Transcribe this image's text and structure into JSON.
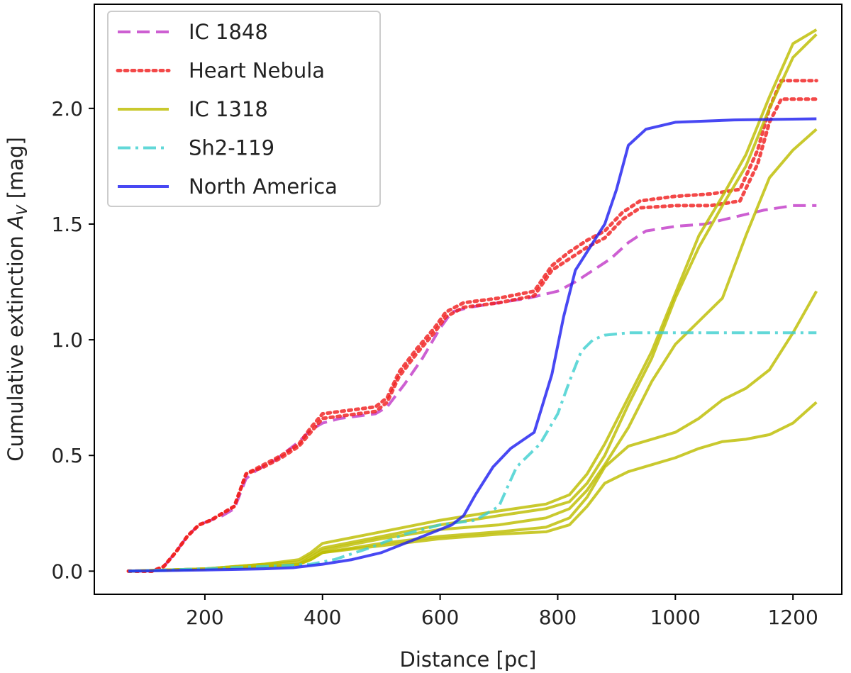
{
  "chart_data": {
    "type": "line",
    "title": "",
    "xlabel": "Distance [pc]",
    "ylabel": "Cumulative extinction A_V [mag]",
    "xlim": [
      12,
      1283
    ],
    "ylim": [
      -0.1,
      2.45
    ],
    "xticks": [
      200,
      400,
      600,
      800,
      1000,
      1200
    ],
    "yticks": [
      0.0,
      0.5,
      1.0,
      1.5,
      2.0
    ],
    "xtick_labels": [
      "200",
      "400",
      "600",
      "800",
      "1000",
      "1200"
    ],
    "ytick_labels": [
      "0.0",
      "0.5",
      "1.0",
      "1.5",
      "2.0"
    ],
    "grid": false,
    "legend_position": "top-left",
    "series": [
      {
        "name": "IC 1848",
        "color": "#c23cc8",
        "style": "dashed",
        "lines": [
          [
            [
              70,
              0
            ],
            [
              110,
              0
            ],
            [
              130,
              0.02
            ],
            [
              150,
              0.08
            ],
            [
              170,
              0.15
            ],
            [
              190,
              0.2
            ],
            [
              210,
              0.22
            ],
            [
              230,
              0.24
            ],
            [
              250,
              0.27
            ],
            [
              270,
              0.4
            ],
            [
              290,
              0.44
            ],
            [
              320,
              0.48
            ],
            [
              340,
              0.52
            ],
            [
              360,
              0.56
            ],
            [
              380,
              0.61
            ],
            [
              400,
              0.64
            ],
            [
              430,
              0.66
            ],
            [
              460,
              0.67
            ],
            [
              490,
              0.68
            ],
            [
              510,
              0.71
            ],
            [
              540,
              0.81
            ],
            [
              570,
              0.92
            ],
            [
              600,
              1.05
            ],
            [
              620,
              1.12
            ],
            [
              650,
              1.14
            ],
            [
              700,
              1.16
            ],
            [
              750,
              1.18
            ],
            [
              800,
              1.21
            ],
            [
              830,
              1.25
            ],
            [
              860,
              1.3
            ],
            [
              890,
              1.35
            ],
            [
              920,
              1.42
            ],
            [
              950,
              1.47
            ],
            [
              1000,
              1.49
            ],
            [
              1050,
              1.5
            ],
            [
              1100,
              1.53
            ],
            [
              1150,
              1.56
            ],
            [
              1200,
              1.58
            ],
            [
              1240,
              1.58
            ]
          ]
        ]
      },
      {
        "name": "Heart Nebula",
        "color": "#f02020",
        "style": "dotted",
        "lines": [
          [
            [
              70,
              0
            ],
            [
              110,
              0
            ],
            [
              130,
              0.02
            ],
            [
              150,
              0.08
            ],
            [
              170,
              0.15
            ],
            [
              190,
              0.2
            ],
            [
              210,
              0.22
            ],
            [
              230,
              0.25
            ],
            [
              250,
              0.28
            ],
            [
              270,
              0.42
            ],
            [
              300,
              0.46
            ],
            [
              330,
              0.5
            ],
            [
              360,
              0.55
            ],
            [
              380,
              0.62
            ],
            [
              400,
              0.68
            ],
            [
              430,
              0.69
            ],
            [
              460,
              0.7
            ],
            [
              490,
              0.71
            ],
            [
              510,
              0.75
            ],
            [
              530,
              0.86
            ],
            [
              560,
              0.96
            ],
            [
              590,
              1.05
            ],
            [
              610,
              1.12
            ],
            [
              640,
              1.16
            ],
            [
              700,
              1.18
            ],
            [
              760,
              1.21
            ],
            [
              790,
              1.32
            ],
            [
              820,
              1.38
            ],
            [
              850,
              1.43
            ],
            [
              880,
              1.47
            ],
            [
              910,
              1.55
            ],
            [
              940,
              1.6
            ],
            [
              1000,
              1.62
            ],
            [
              1060,
              1.63
            ],
            [
              1110,
              1.65
            ],
            [
              1140,
              1.82
            ],
            [
              1160,
              2.0
            ],
            [
              1180,
              2.12
            ],
            [
              1240,
              2.12
            ]
          ],
          [
            [
              70,
              0
            ],
            [
              110,
              0
            ],
            [
              130,
              0.02
            ],
            [
              150,
              0.08
            ],
            [
              170,
              0.15
            ],
            [
              190,
              0.2
            ],
            [
              210,
              0.22
            ],
            [
              230,
              0.25
            ],
            [
              250,
              0.28
            ],
            [
              270,
              0.42
            ],
            [
              300,
              0.45
            ],
            [
              330,
              0.49
            ],
            [
              360,
              0.54
            ],
            [
              380,
              0.6
            ],
            [
              400,
              0.66
            ],
            [
              430,
              0.67
            ],
            [
              460,
              0.68
            ],
            [
              490,
              0.69
            ],
            [
              510,
              0.73
            ],
            [
              530,
              0.84
            ],
            [
              560,
              0.94
            ],
            [
              590,
              1.03
            ],
            [
              610,
              1.1
            ],
            [
              640,
              1.14
            ],
            [
              700,
              1.16
            ],
            [
              760,
              1.19
            ],
            [
              790,
              1.3
            ],
            [
              820,
              1.35
            ],
            [
              850,
              1.4
            ],
            [
              880,
              1.44
            ],
            [
              910,
              1.52
            ],
            [
              940,
              1.57
            ],
            [
              1000,
              1.58
            ],
            [
              1060,
              1.58
            ],
            [
              1110,
              1.6
            ],
            [
              1140,
              1.76
            ],
            [
              1160,
              1.94
            ],
            [
              1180,
              2.04
            ],
            [
              1240,
              2.04
            ]
          ]
        ]
      },
      {
        "name": "IC 1318",
        "color": "#bdbd00",
        "style": "solid",
        "lines": [
          [
            [
              70,
              0
            ],
            [
              200,
              0.01
            ],
            [
              300,
              0.03
            ],
            [
              360,
              0.05
            ],
            [
              380,
              0.08
            ],
            [
              400,
              0.12
            ],
            [
              500,
              0.17
            ],
            [
              600,
              0.22
            ],
            [
              700,
              0.26
            ],
            [
              780,
              0.29
            ],
            [
              820,
              0.33
            ],
            [
              850,
              0.42
            ],
            [
              880,
              0.55
            ],
            [
              920,
              0.75
            ],
            [
              960,
              0.95
            ],
            [
              1000,
              1.2
            ],
            [
              1040,
              1.45
            ],
            [
              1080,
              1.62
            ],
            [
              1120,
              1.8
            ],
            [
              1160,
              2.05
            ],
            [
              1200,
              2.28
            ],
            [
              1240,
              2.34
            ]
          ],
          [
            [
              70,
              0
            ],
            [
              200,
              0.01
            ],
            [
              300,
              0.03
            ],
            [
              360,
              0.04
            ],
            [
              380,
              0.07
            ],
            [
              400,
              0.1
            ],
            [
              500,
              0.15
            ],
            [
              600,
              0.2
            ],
            [
              700,
              0.24
            ],
            [
              780,
              0.27
            ],
            [
              820,
              0.3
            ],
            [
              850,
              0.38
            ],
            [
              880,
              0.5
            ],
            [
              920,
              0.72
            ],
            [
              960,
              0.92
            ],
            [
              1000,
              1.18
            ],
            [
              1040,
              1.4
            ],
            [
              1080,
              1.58
            ],
            [
              1120,
              1.75
            ],
            [
              1160,
              2.0
            ],
            [
              1200,
              2.22
            ],
            [
              1240,
              2.32
            ]
          ],
          [
            [
              70,
              0
            ],
            [
              200,
              0.01
            ],
            [
              300,
              0.02
            ],
            [
              360,
              0.03
            ],
            [
              380,
              0.06
            ],
            [
              400,
              0.09
            ],
            [
              500,
              0.14
            ],
            [
              600,
              0.18
            ],
            [
              700,
              0.2
            ],
            [
              780,
              0.23
            ],
            [
              820,
              0.27
            ],
            [
              850,
              0.35
            ],
            [
              880,
              0.46
            ],
            [
              920,
              0.62
            ],
            [
              960,
              0.82
            ],
            [
              1000,
              0.98
            ],
            [
              1040,
              1.08
            ],
            [
              1080,
              1.18
            ],
            [
              1120,
              1.45
            ],
            [
              1160,
              1.7
            ],
            [
              1200,
              1.82
            ],
            [
              1240,
              1.91
            ]
          ],
          [
            [
              70,
              0
            ],
            [
              200,
              0.01
            ],
            [
              300,
              0.02
            ],
            [
              360,
              0.03
            ],
            [
              380,
              0.05
            ],
            [
              400,
              0.08
            ],
            [
              500,
              0.12
            ],
            [
              600,
              0.15
            ],
            [
              700,
              0.17
            ],
            [
              780,
              0.19
            ],
            [
              820,
              0.23
            ],
            [
              850,
              0.32
            ],
            [
              880,
              0.45
            ],
            [
              920,
              0.54
            ],
            [
              960,
              0.57
            ],
            [
              1000,
              0.6
            ],
            [
              1040,
              0.66
            ],
            [
              1080,
              0.74
            ],
            [
              1120,
              0.79
            ],
            [
              1160,
              0.87
            ],
            [
              1200,
              1.03
            ],
            [
              1240,
              1.21
            ]
          ],
          [
            [
              70,
              0
            ],
            [
              200,
              0.01
            ],
            [
              300,
              0.02
            ],
            [
              360,
              0.03
            ],
            [
              380,
              0.05
            ],
            [
              400,
              0.08
            ],
            [
              500,
              0.11
            ],
            [
              600,
              0.14
            ],
            [
              700,
              0.16
            ],
            [
              780,
              0.17
            ],
            [
              820,
              0.2
            ],
            [
              850,
              0.28
            ],
            [
              880,
              0.38
            ],
            [
              920,
              0.43
            ],
            [
              960,
              0.46
            ],
            [
              1000,
              0.49
            ],
            [
              1040,
              0.53
            ],
            [
              1080,
              0.56
            ],
            [
              1120,
              0.57
            ],
            [
              1160,
              0.59
            ],
            [
              1200,
              0.64
            ],
            [
              1240,
              0.73
            ]
          ]
        ]
      },
      {
        "name": "Sh2-119",
        "color": "#40d0d0",
        "style": "dashdot",
        "lines": [
          [
            [
              70,
              0
            ],
            [
              200,
              0.01
            ],
            [
              300,
              0.02
            ],
            [
              380,
              0.03
            ],
            [
              420,
              0.05
            ],
            [
              480,
              0.1
            ],
            [
              540,
              0.16
            ],
            [
              600,
              0.2
            ],
            [
              660,
              0.22
            ],
            [
              700,
              0.28
            ],
            [
              730,
              0.45
            ],
            [
              770,
              0.55
            ],
            [
              800,
              0.68
            ],
            [
              820,
              0.82
            ],
            [
              840,
              0.95
            ],
            [
              860,
              1.0
            ],
            [
              880,
              1.02
            ],
            [
              920,
              1.03
            ],
            [
              1000,
              1.03
            ],
            [
              1100,
              1.03
            ],
            [
              1240,
              1.03
            ]
          ]
        ]
      },
      {
        "name": "North America",
        "color": "#2020f0",
        "style": "solid",
        "lines": [
          [
            [
              70,
              0
            ],
            [
              200,
              0.005
            ],
            [
              300,
              0.01
            ],
            [
              350,
              0.015
            ],
            [
              400,
              0.03
            ],
            [
              450,
              0.05
            ],
            [
              500,
              0.08
            ],
            [
              540,
              0.12
            ],
            [
              580,
              0.16
            ],
            [
              620,
              0.2
            ],
            [
              640,
              0.24
            ],
            [
              660,
              0.33
            ],
            [
              690,
              0.45
            ],
            [
              720,
              0.53
            ],
            [
              760,
              0.6
            ],
            [
              790,
              0.85
            ],
            [
              810,
              1.1
            ],
            [
              830,
              1.3
            ],
            [
              860,
              1.42
            ],
            [
              880,
              1.5
            ],
            [
              900,
              1.65
            ],
            [
              920,
              1.84
            ],
            [
              950,
              1.91
            ],
            [
              1000,
              1.94
            ],
            [
              1100,
              1.95
            ],
            [
              1240,
              1.955
            ]
          ]
        ]
      }
    ]
  }
}
